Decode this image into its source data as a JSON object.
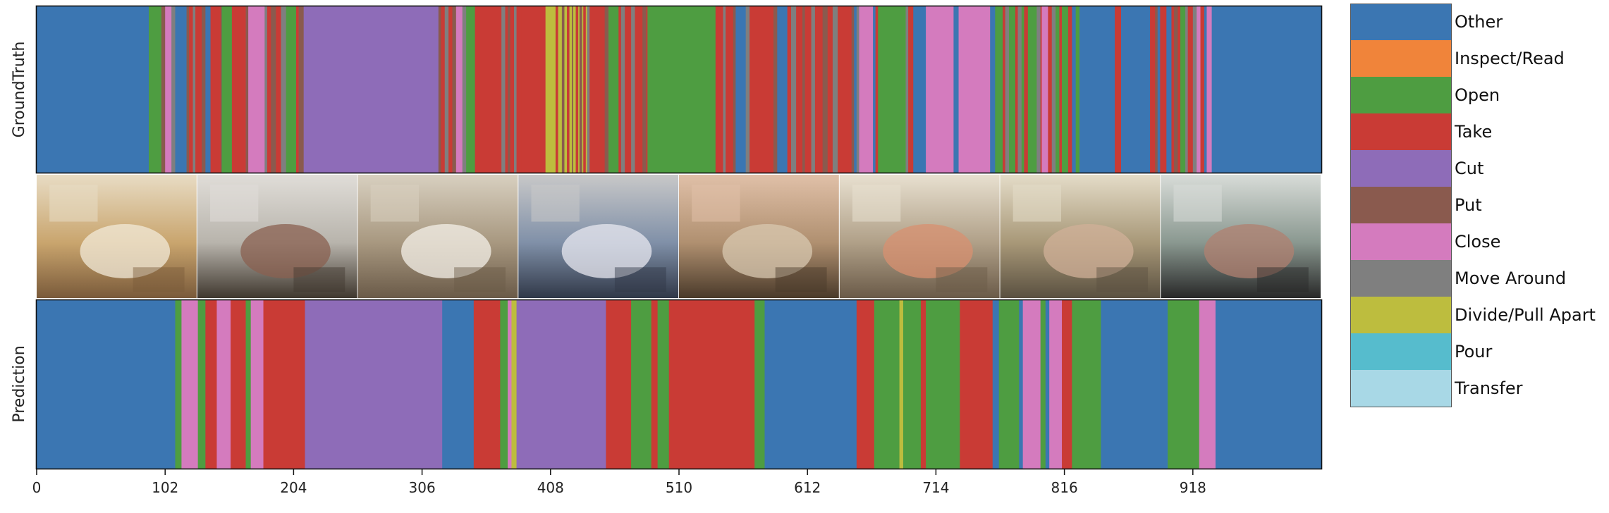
{
  "chart_data": {
    "type": "segmentation-timeline",
    "xlim": [
      0,
      1020
    ],
    "x_ticks": [
      0,
      102,
      204,
      306,
      408,
      510,
      612,
      714,
      816,
      918
    ],
    "rows": [
      {
        "label": "GroundTruth"
      },
      {
        "label": "Prediction"
      }
    ],
    "classes": [
      {
        "name": "Other",
        "color": "#3b76b2"
      },
      {
        "name": "Inspect/Read",
        "color": "#f0843a"
      },
      {
        "name": "Open",
        "color": "#4e9d41"
      },
      {
        "name": "Take",
        "color": "#c93b35"
      },
      {
        "name": "Cut",
        "color": "#8e6cb8"
      },
      {
        "name": "Put",
        "color": "#8a5a4e"
      },
      {
        "name": "Close",
        "color": "#d47bbe"
      },
      {
        "name": "Move Around",
        "color": "#7f7f7f"
      },
      {
        "name": "Divide/Pull Apart",
        "color": "#bdbd3e"
      },
      {
        "name": "Pour",
        "color": "#56bccd"
      },
      {
        "name": "Transfer",
        "color": "#a8d8e6"
      }
    ],
    "groundtruth": [
      [
        0,
        89,
        "Other"
      ],
      [
        89,
        99,
        "Open"
      ],
      [
        99,
        102,
        "Put"
      ],
      [
        102,
        107,
        "Close"
      ],
      [
        107,
        110,
        "Move Around"
      ],
      [
        110,
        119,
        "Other"
      ],
      [
        119,
        121,
        "Put"
      ],
      [
        121,
        124,
        "Take"
      ],
      [
        124,
        126,
        "Move Around"
      ],
      [
        126,
        131,
        "Take"
      ],
      [
        131,
        134,
        "Put"
      ],
      [
        134,
        138,
        "Other"
      ],
      [
        138,
        146,
        "Take"
      ],
      [
        146,
        147,
        "Put"
      ],
      [
        147,
        155,
        "Open"
      ],
      [
        155,
        166,
        "Take"
      ],
      [
        166,
        168,
        "Put"
      ],
      [
        168,
        181,
        "Close"
      ],
      [
        181,
        183,
        "Move Around"
      ],
      [
        183,
        186,
        "Take"
      ],
      [
        186,
        190,
        "Put"
      ],
      [
        190,
        194,
        "Take"
      ],
      [
        194,
        198,
        "Move Around"
      ],
      [
        198,
        206,
        "Open"
      ],
      [
        206,
        208,
        "Take"
      ],
      [
        208,
        212,
        "Put"
      ],
      [
        212,
        319,
        "Cut"
      ],
      [
        319,
        321,
        "Put"
      ],
      [
        321,
        324,
        "Take"
      ],
      [
        324,
        327,
        "Move Around"
      ],
      [
        327,
        330,
        "Take"
      ],
      [
        330,
        333,
        "Put"
      ],
      [
        333,
        338,
        "Close"
      ],
      [
        338,
        341,
        "Move Around"
      ],
      [
        341,
        348,
        "Open"
      ],
      [
        348,
        369,
        "Take"
      ],
      [
        369,
        372,
        "Move Around"
      ],
      [
        372,
        374,
        "Take"
      ],
      [
        374,
        376,
        "Put"
      ],
      [
        376,
        379,
        "Take"
      ],
      [
        379,
        381,
        "Move Around"
      ],
      [
        381,
        385,
        "Take"
      ],
      [
        385,
        404,
        "Take"
      ],
      [
        404,
        412,
        "Divide/Pull Apart"
      ],
      [
        412,
        414,
        "Take"
      ],
      [
        414,
        417,
        "Divide/Pull Apart"
      ],
      [
        417,
        419,
        "Put"
      ],
      [
        419,
        421,
        "Divide/Pull Apart"
      ],
      [
        421,
        423,
        "Take"
      ],
      [
        423,
        425,
        "Divide/Pull Apart"
      ],
      [
        425,
        426,
        "Put"
      ],
      [
        426,
        428,
        "Divide/Pull Apart"
      ],
      [
        428,
        430,
        "Take"
      ],
      [
        430,
        431,
        "Divide/Pull Apart"
      ],
      [
        431,
        433,
        "Put"
      ],
      [
        433,
        434,
        "Divide/Pull Apart"
      ],
      [
        434,
        436,
        "Take"
      ],
      [
        436,
        437,
        "Divide/Pull Apart"
      ],
      [
        437,
        439,
        "Move Around"
      ],
      [
        439,
        451,
        "Take"
      ],
      [
        451,
        454,
        "Put"
      ],
      [
        454,
        462,
        "Open"
      ],
      [
        462,
        464,
        "Take"
      ],
      [
        464,
        467,
        "Move Around"
      ],
      [
        467,
        472,
        "Take"
      ],
      [
        472,
        475,
        "Move Around"
      ],
      [
        475,
        481,
        "Take"
      ],
      [
        481,
        484,
        "Put"
      ],
      [
        484,
        485,
        "Take"
      ],
      [
        485,
        539,
        "Open"
      ],
      [
        539,
        545,
        "Take"
      ],
      [
        545,
        547,
        "Move Around"
      ],
      [
        547,
        553,
        "Take"
      ],
      [
        553,
        555,
        "Put"
      ],
      [
        555,
        563,
        "Other"
      ],
      [
        563,
        566,
        "Move Around"
      ],
      [
        566,
        585,
        "Take"
      ],
      [
        585,
        588,
        "Put"
      ],
      [
        588,
        596,
        "Other"
      ],
      [
        596,
        599,
        "Take"
      ],
      [
        599,
        603,
        "Move Around"
      ],
      [
        603,
        608,
        "Take"
      ],
      [
        608,
        610,
        "Put"
      ],
      [
        610,
        615,
        "Take"
      ],
      [
        615,
        618,
        "Move Around"
      ],
      [
        618,
        624,
        "Take"
      ],
      [
        624,
        628,
        "Put"
      ],
      [
        628,
        632,
        "Take"
      ],
      [
        632,
        636,
        "Move Around"
      ],
      [
        636,
        647,
        "Take"
      ],
      [
        647,
        649,
        "Put"
      ],
      [
        649,
        651,
        "Other"
      ],
      [
        651,
        653,
        "Move Around"
      ],
      [
        653,
        664,
        "Close"
      ],
      [
        664,
        666,
        "Other"
      ],
      [
        666,
        668,
        "Take"
      ],
      [
        668,
        690,
        "Open"
      ],
      [
        690,
        692,
        "Move Around"
      ],
      [
        692,
        696,
        "Take"
      ],
      [
        696,
        706,
        "Other"
      ],
      [
        706,
        728,
        "Close"
      ],
      [
        728,
        732,
        "Other"
      ],
      [
        732,
        757,
        "Close"
      ],
      [
        757,
        761,
        "Other"
      ],
      [
        761,
        767,
        "Open"
      ],
      [
        767,
        769,
        "Take"
      ],
      [
        769,
        772,
        "Move Around"
      ],
      [
        772,
        777,
        "Open"
      ],
      [
        777,
        779,
        "Take"
      ],
      [
        779,
        782,
        "Move Around"
      ],
      [
        782,
        784,
        "Open"
      ],
      [
        784,
        787,
        "Take"
      ],
      [
        787,
        794,
        "Open"
      ],
      [
        794,
        797,
        "Move Around"
      ],
      [
        797,
        798,
        "Take"
      ],
      [
        798,
        803,
        "Close"
      ],
      [
        803,
        806,
        "Take"
      ],
      [
        806,
        809,
        "Move Around"
      ],
      [
        809,
        812,
        "Open"
      ],
      [
        812,
        814,
        "Take"
      ],
      [
        814,
        819,
        "Open"
      ],
      [
        819,
        822,
        "Take"
      ],
      [
        822,
        825,
        "Other"
      ],
      [
        825,
        828,
        "Open"
      ],
      [
        828,
        856,
        "Other"
      ],
      [
        856,
        861,
        "Take"
      ],
      [
        861,
        884,
        "Other"
      ],
      [
        884,
        888,
        "Take"
      ],
      [
        888,
        890,
        "Put"
      ],
      [
        890,
        892,
        "Other"
      ],
      [
        892,
        897,
        "Take"
      ],
      [
        897,
        901,
        "Other"
      ],
      [
        901,
        903,
        "Take"
      ],
      [
        903,
        906,
        "Put"
      ],
      [
        906,
        908,
        "Take"
      ],
      [
        908,
        912,
        "Open"
      ],
      [
        912,
        914,
        "Move Around"
      ],
      [
        914,
        918,
        "Take"
      ],
      [
        918,
        921,
        "Move Around"
      ],
      [
        921,
        924,
        "Close"
      ],
      [
        924,
        927,
        "Take"
      ],
      [
        927,
        929,
        "Other"
      ],
      [
        929,
        933,
        "Close"
      ],
      [
        933,
        1020,
        "Other"
      ]
    ],
    "prediction": [
      [
        0,
        110,
        "Other"
      ],
      [
        110,
        115,
        "Open"
      ],
      [
        115,
        128,
        "Close"
      ],
      [
        128,
        134,
        "Open"
      ],
      [
        134,
        143,
        "Take"
      ],
      [
        143,
        154,
        "Close"
      ],
      [
        154,
        166,
        "Take"
      ],
      [
        166,
        170,
        "Open"
      ],
      [
        170,
        180,
        "Close"
      ],
      [
        180,
        213,
        "Take"
      ],
      [
        213,
        322,
        "Cut"
      ],
      [
        322,
        347,
        "Other"
      ],
      [
        347,
        368,
        "Take"
      ],
      [
        368,
        374,
        "Open"
      ],
      [
        374,
        377,
        "Close"
      ],
      [
        377,
        381,
        "Divide/Pull Apart"
      ],
      [
        381,
        452,
        "Cut"
      ],
      [
        452,
        472,
        "Take"
      ],
      [
        472,
        488,
        "Open"
      ],
      [
        488,
        493,
        "Take"
      ],
      [
        493,
        502,
        "Open"
      ],
      [
        502,
        570,
        "Take"
      ],
      [
        570,
        578,
        "Open"
      ],
      [
        578,
        651,
        "Other"
      ],
      [
        651,
        665,
        "Take"
      ],
      [
        665,
        685,
        "Open"
      ],
      [
        685,
        688,
        "Divide/Pull Apart"
      ],
      [
        688,
        702,
        "Open"
      ],
      [
        702,
        706,
        "Take"
      ],
      [
        706,
        733,
        "Open"
      ],
      [
        733,
        759,
        "Take"
      ],
      [
        759,
        764,
        "Other"
      ],
      [
        764,
        780,
        "Open"
      ],
      [
        780,
        783,
        "Other"
      ],
      [
        783,
        797,
        "Close"
      ],
      [
        797,
        801,
        "Open"
      ],
      [
        801,
        804,
        "Other"
      ],
      [
        804,
        814,
        "Close"
      ],
      [
        814,
        822,
        "Take"
      ],
      [
        822,
        845,
        "Open"
      ],
      [
        845,
        898,
        "Other"
      ],
      [
        898,
        923,
        "Open"
      ],
      [
        923,
        936,
        "Close"
      ],
      [
        936,
        1020,
        "Other"
      ]
    ]
  },
  "frames": [
    {
      "scene": "kitchen-room",
      "colors": [
        "#7a5a3a",
        "#c9a56e",
        "#e8dcc4",
        "#f2ead8"
      ]
    },
    {
      "scene": "fridge-open",
      "colors": [
        "#40382f",
        "#b8b4ac",
        "#e0ddd8",
        "#8a6050"
      ]
    },
    {
      "scene": "counter-plate",
      "colors": [
        "#6a5a48",
        "#a89880",
        "#d8d0c0",
        "#f4f0e8"
      ]
    },
    {
      "scene": "fridge-drawer",
      "colors": [
        "#303848",
        "#8090a8",
        "#c8c8c8",
        "#e8e8f0"
      ]
    },
    {
      "scene": "cutting-board",
      "colors": [
        "#4a3a2a",
        "#b09070",
        "#e0c0a8",
        "#d8c8b0"
      ]
    },
    {
      "scene": "plate-cutting",
      "colors": [
        "#6a5a48",
        "#b0a088",
        "#e8e0d0",
        "#d89070"
      ]
    },
    {
      "scene": "plate-hands",
      "colors": [
        "#5a5040",
        "#a89878",
        "#e4dcc8",
        "#d0b098"
      ]
    },
    {
      "scene": "fridge-bottle",
      "colors": [
        "#282828",
        "#8a9890",
        "#d8dcd8",
        "#b08070"
      ]
    }
  ]
}
